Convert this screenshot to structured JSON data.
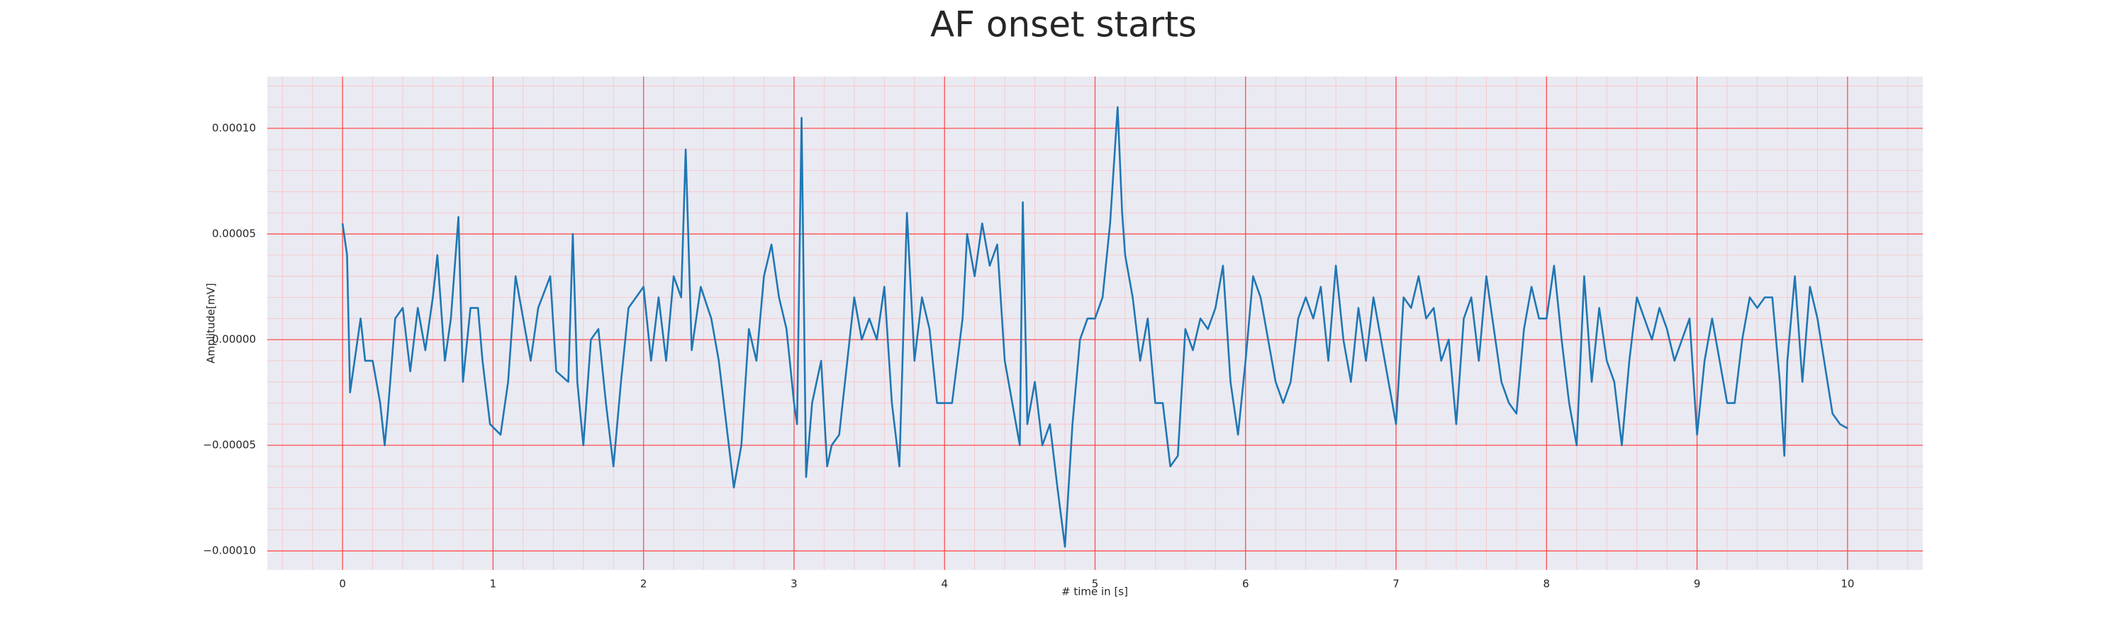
{
  "chart_data": {
    "type": "line",
    "title": "AF onset starts",
    "x_label": "# time in [s]",
    "y_label": "Amplitude[mV]",
    "color": "#1f77b4",
    "grid": true,
    "grid_color": "#ff4d4d",
    "xlim": [
      -0.5,
      10.5
    ],
    "ylim": [
      -0.000109,
      0.0001245
    ],
    "xticks": [
      0,
      1,
      2,
      3,
      4,
      5,
      6,
      7,
      8,
      9,
      10
    ],
    "yticks": [
      {
        "value": -0.0001,
        "label": "−0.00010"
      },
      {
        "value": -5e-05,
        "label": "−0.00005"
      },
      {
        "value": 0,
        "label": "0.00000"
      },
      {
        "value": 5e-05,
        "label": "0.00005"
      },
      {
        "value": 0.0001,
        "label": "0.00010"
      }
    ],
    "x": [
      0,
      0.03,
      0.05,
      0.1,
      0.12,
      0.15,
      0.2,
      0.25,
      0.28,
      0.3,
      0.35,
      0.4,
      0.45,
      0.5,
      0.55,
      0.6,
      0.63,
      0.68,
      0.72,
      0.77,
      0.8,
      0.85,
      0.9,
      0.93,
      0.98,
      1.05,
      1.1,
      1.15,
      1.2,
      1.25,
      1.3,
      1.38,
      1.42,
      1.5,
      1.53,
      1.56,
      1.6,
      1.65,
      1.7,
      1.75,
      1.8,
      1.85,
      1.9,
      1.95,
      2,
      2.05,
      2.1,
      2.15,
      2.2,
      2.25,
      2.28,
      2.32,
      2.38,
      2.45,
      2.5,
      2.55,
      2.6,
      2.65,
      2.7,
      2.75,
      2.8,
      2.85,
      2.9,
      2.95,
      3,
      3.02,
      3.05,
      3.08,
      3.12,
      3.18,
      3.22,
      3.25,
      3.3,
      3.4,
      3.45,
      3.5,
      3.55,
      3.6,
      3.65,
      3.7,
      3.75,
      3.8,
      3.85,
      3.9,
      3.95,
      4.05,
      4.12,
      4.15,
      4.2,
      4.25,
      4.3,
      4.35,
      4.4,
      4.45,
      4.5,
      4.52,
      4.55,
      4.6,
      4.65,
      4.7,
      4.75,
      4.8,
      4.85,
      4.9,
      4.95,
      5,
      5.05,
      5.1,
      5.15,
      5.18,
      5.2,
      5.25,
      5.3,
      5.35,
      5.4,
      5.45,
      5.5,
      5.55,
      5.6,
      5.65,
      5.7,
      5.75,
      5.8,
      5.85,
      5.9,
      5.95,
      6,
      6.05,
      6.1,
      6.15,
      6.2,
      6.25,
      6.3,
      6.35,
      6.4,
      6.45,
      6.5,
      6.55,
      6.6,
      6.65,
      6.7,
      6.75,
      6.8,
      6.85,
      6.9,
      6.95,
      7,
      7.05,
      7.1,
      7.15,
      7.2,
      7.25,
      7.3,
      7.35,
      7.4,
      7.45,
      7.5,
      7.55,
      7.6,
      7.65,
      7.7,
      7.75,
      7.8,
      7.85,
      7.9,
      7.95,
      8,
      8.05,
      8.1,
      8.15,
      8.2,
      8.25,
      8.3,
      8.35,
      8.4,
      8.45,
      8.5,
      8.55,
      8.6,
      8.65,
      8.7,
      8.75,
      8.8,
      8.85,
      8.9,
      8.95,
      9,
      9.05,
      9.1,
      9.15,
      9.2,
      9.25,
      9.3,
      9.35,
      9.4,
      9.45,
      9.5,
      9.55,
      9.58,
      9.6,
      9.65,
      9.7,
      9.75,
      9.8,
      9.9,
      9.95,
      10
    ],
    "values": [
      5.5e-05,
      4e-05,
      -2.5e-05,
      0,
      1e-05,
      -1e-05,
      -1e-05,
      -3e-05,
      -5e-05,
      -3.5e-05,
      1e-05,
      1.5e-05,
      -1.5e-05,
      1.5e-05,
      -5e-06,
      2e-05,
      4e-05,
      -1e-05,
      1e-05,
      5.8e-05,
      -2e-05,
      1.5e-05,
      1.5e-05,
      -1e-05,
      -4e-05,
      -4.5e-05,
      -2e-05,
      3e-05,
      1e-05,
      -1e-05,
      1.5e-05,
      3e-05,
      -1.5e-05,
      -2e-05,
      5e-05,
      -2e-05,
      -5e-05,
      0,
      5e-06,
      -3e-05,
      -6e-05,
      -2e-05,
      1.5e-05,
      2e-05,
      2.5e-05,
      -1e-05,
      2e-05,
      -1e-05,
      3e-05,
      2e-05,
      9e-05,
      -5e-06,
      2.5e-05,
      1e-05,
      -1e-05,
      -4e-05,
      -7e-05,
      -5e-05,
      5e-06,
      -1e-05,
      3e-05,
      4.5e-05,
      2e-05,
      5e-06,
      -3e-05,
      -4e-05,
      0.000105,
      -6.5e-05,
      -3e-05,
      -1e-05,
      -6e-05,
      -5e-05,
      -4.5e-05,
      2e-05,
      0,
      1e-05,
      0,
      2.5e-05,
      -3e-05,
      -6e-05,
      6e-05,
      -1e-05,
      2e-05,
      5e-06,
      -3e-05,
      -3e-05,
      1e-05,
      5e-05,
      3e-05,
      5.5e-05,
      3.5e-05,
      4.5e-05,
      -1e-05,
      -3e-05,
      -5e-05,
      6.5e-05,
      -4e-05,
      -2e-05,
      -5e-05,
      -4e-05,
      -7e-05,
      -9.8e-05,
      -4e-05,
      0,
      1e-05,
      1e-05,
      2e-05,
      5.5e-05,
      0.00011,
      6e-05,
      4e-05,
      2e-05,
      -1e-05,
      1e-05,
      -3e-05,
      -3e-05,
      -6e-05,
      -5.5e-05,
      5e-06,
      -5e-06,
      1e-05,
      5e-06,
      1.5e-05,
      3.5e-05,
      -2e-05,
      -4.5e-05,
      -1e-05,
      3e-05,
      2e-05,
      0,
      -2e-05,
      -3e-05,
      -2e-05,
      1e-05,
      2e-05,
      1e-05,
      2.5e-05,
      -1e-05,
      3.5e-05,
      0,
      -2e-05,
      1.5e-05,
      -1e-05,
      2e-05,
      0,
      -2e-05,
      -4e-05,
      2e-05,
      1.5e-05,
      3e-05,
      1e-05,
      1.5e-05,
      -1e-05,
      0,
      -4e-05,
      1e-05,
      2e-05,
      -1e-05,
      3e-05,
      5e-06,
      -2e-05,
      -3e-05,
      -3.5e-05,
      5e-06,
      2.5e-05,
      1e-05,
      1e-05,
      3.5e-05,
      0,
      -3e-05,
      -5e-05,
      3e-05,
      -2e-05,
      1.5e-05,
      -1e-05,
      -2e-05,
      -5e-05,
      -1e-05,
      2e-05,
      1e-05,
      0,
      1.5e-05,
      5e-06,
      -1e-05,
      0,
      1e-05,
      -4.5e-05,
      -1e-05,
      1e-05,
      -1e-05,
      -3e-05,
      -3e-05,
      0,
      2e-05,
      1.5e-05,
      2e-05,
      2e-05,
      -2e-05,
      -5.5e-05,
      -1e-05,
      3e-05,
      -2e-05,
      2.5e-05,
      1e-05,
      -3.5e-05,
      -4e-05,
      -4.2e-05
    ]
  }
}
